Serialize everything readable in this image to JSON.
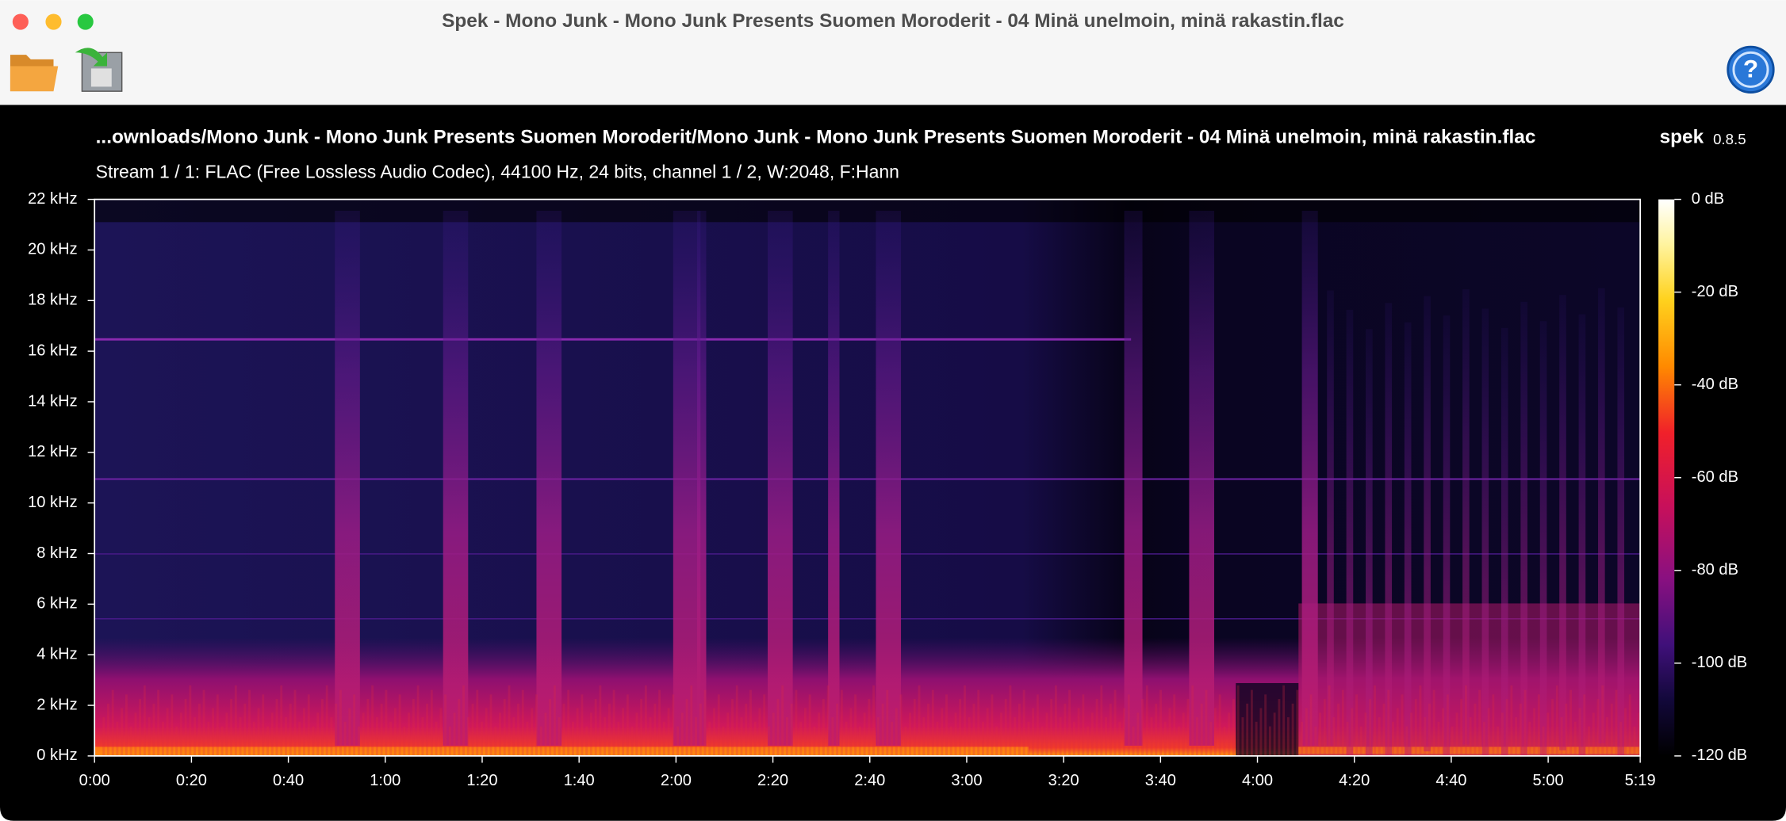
{
  "window": {
    "title": "Spek - Mono Junk - Mono Junk Presents Suomen Moroderit - 04 Minä unelmoin, minä rakastin.flac"
  },
  "header": {
    "file_path": "...ownloads/Mono Junk - Mono Junk Presents Suomen Moroderit/Mono Junk - Mono Junk Presents Suomen Moroderit - 04 Minä unelmoin, minä rakastin.flac",
    "app_name": "spek",
    "version": "0.8.5",
    "stream_info": "Stream 1 / 1: FLAC (Free Lossless Audio Codec), 44100 Hz, 24 bits, channel 1 / 2, W:2048, F:Hann"
  },
  "frequency_axis": {
    "labels": [
      "0 kHz",
      "2 kHz",
      "4 kHz",
      "6 kHz",
      "8 kHz",
      "10 kHz",
      "12 kHz",
      "14 kHz",
      "16 kHz",
      "18 kHz",
      "20 kHz",
      "22 kHz"
    ]
  },
  "time_axis": {
    "labels": [
      "0:00",
      "0:20",
      "0:40",
      "1:00",
      "1:20",
      "1:40",
      "2:00",
      "2:20",
      "2:40",
      "3:00",
      "3:20",
      "3:40",
      "4:00",
      "4:20",
      "4:40",
      "5:00",
      "5:19"
    ]
  },
  "level_scale": {
    "labels": [
      "0 dB",
      "-20 dB",
      "-40 dB",
      "-60 dB",
      "-80 dB",
      "-100 dB",
      "-120 dB"
    ]
  }
}
